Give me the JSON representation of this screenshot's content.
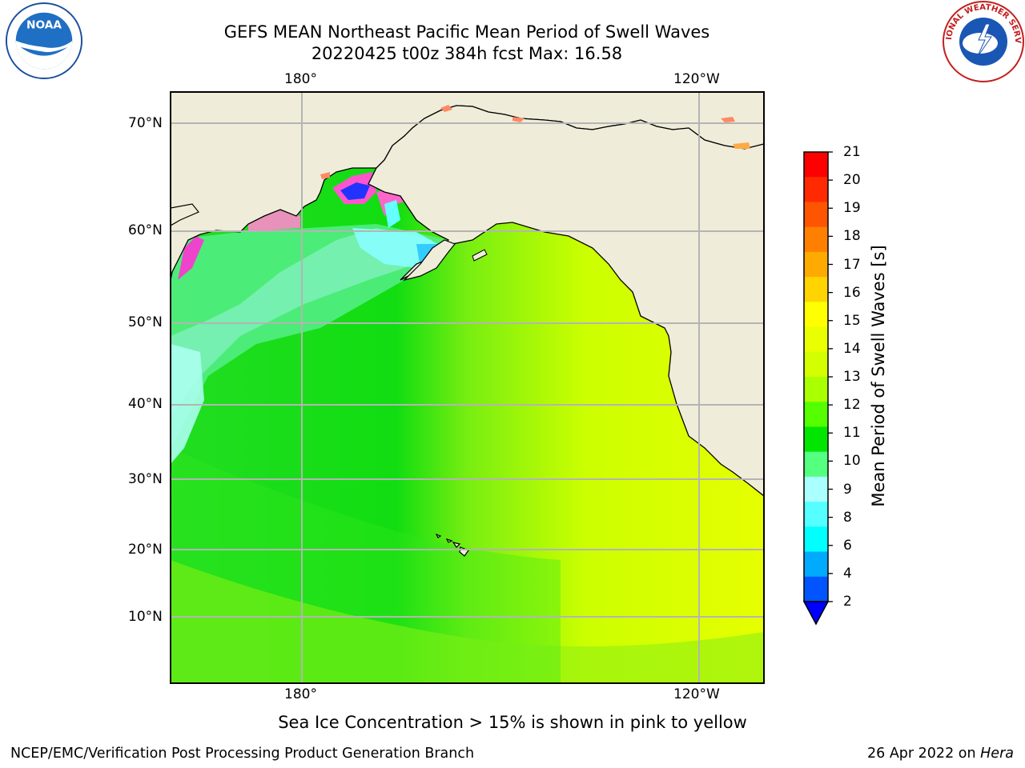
{
  "header": {
    "title_line1": "GEFS MEAN Northeast Pacific Mean Period of Swell Waves",
    "title_line2": "20220425 t00z 384h fcst   Max: 16.58"
  },
  "logos": {
    "left": "NOAA",
    "right": "NATIONAL WEATHER SERVICE"
  },
  "map": {
    "lon_labels_top": [
      "180°",
      "120°W"
    ],
    "lon_labels_bottom": [
      "180°",
      "120°W"
    ],
    "lat_labels": [
      "70°N",
      "60°N",
      "50°N",
      "40°N",
      "30°N",
      "20°N",
      "10°N"
    ]
  },
  "colorbar": {
    "label": "Mean Period of Swell Waves [s]",
    "ticks": [
      "21",
      "20",
      "19",
      "18",
      "17",
      "16",
      "15",
      "14",
      "13",
      "12",
      "11",
      "10",
      "9",
      "8",
      "6",
      "4",
      "2"
    ],
    "colors": [
      "#ff0000",
      "#ff2a00",
      "#ff5500",
      "#ff8000",
      "#ffaa00",
      "#ffd400",
      "#ffff00",
      "#eaff00",
      "#d4ff00",
      "#aaff00",
      "#55ff00",
      "#00e600",
      "#55ff80",
      "#aaffff",
      "#55ffff",
      "#00ffff",
      "#00aaff",
      "#0055ff"
    ],
    "under_color": "#0000ff"
  },
  "footer": {
    "ice_note": "Sea Ice Concentration > 15% is shown in pink to yellow",
    "credit": "NCEP/EMC/Verification Post Processing Product Generation Branch",
    "date_prefix": "26 Apr 2022 on ",
    "machine": "Hera"
  }
}
